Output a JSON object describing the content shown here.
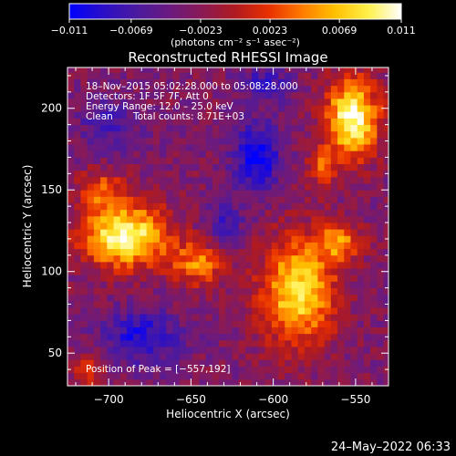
{
  "chart_data": {
    "type": "heatmap",
    "title": "Reconstructed RHESSI Image",
    "xlabel": "Heliocentric X (arcsec)",
    "ylabel": "Heliocentric Y (arcsec)",
    "xlim": [
      -725,
      -530
    ],
    "ylim": [
      30,
      225
    ],
    "x_ticks": [
      -700,
      -650,
      -600,
      -550
    ],
    "x_tick_labels": [
      "−700",
      "−650",
      "−600",
      "−550"
    ],
    "y_ticks": [
      50,
      100,
      150,
      200
    ],
    "y_tick_labels": [
      "50",
      "100",
      "150",
      "200"
    ],
    "colorbar": {
      "min": -0.011,
      "max": 0.011,
      "ticks": [
        -0.011,
        -0.0069,
        -0.0023,
        0.0023,
        0.0069,
        0.011
      ],
      "tick_labels": [
        "−0.011",
        "−0.0069",
        "−0.0023",
        "0.0023",
        "0.0069",
        "0.011"
      ],
      "unit_label": "(photons cm⁻² s⁻¹ asec⁻²)",
      "colormap": [
        "#0000ff",
        "#2a0ec8",
        "#4a1aa0",
        "#6a1a80",
        "#8a1a55",
        "#b01a20",
        "#e83000",
        "#ff7a00",
        "#ffc000",
        "#fff04a",
        "#ffffff"
      ]
    },
    "annotations": {
      "time_range": "18–Nov–2015 05:02:28.000 to 05:08:28.000",
      "detectors": "Detectors: 1F 5F 7F, Att 0",
      "energy_range": "Energy Range: 12.0 – 25.0 keV",
      "method": "Clean",
      "total_counts": "Total counts: 8.71E+03",
      "peak": "Position of Peak = [−557,192]"
    },
    "sources": [
      {
        "x": -690,
        "y": 122,
        "rx": 26,
        "ry": 19,
        "amp": 1.0
      },
      {
        "x": -705,
        "y": 150,
        "rx": 14,
        "ry": 12,
        "amp": 0.45
      },
      {
        "x": -645,
        "y": 105,
        "rx": 16,
        "ry": 14,
        "amp": 0.55
      },
      {
        "x": -585,
        "y": 88,
        "rx": 22,
        "ry": 32,
        "amp": 0.85
      },
      {
        "x": -560,
        "y": 118,
        "rx": 14,
        "ry": 12,
        "amp": 0.55
      },
      {
        "x": -552,
        "y": 194,
        "rx": 16,
        "ry": 24,
        "amp": 1.0
      },
      {
        "x": -570,
        "y": 164,
        "rx": 10,
        "ry": 12,
        "amp": 0.4
      },
      {
        "x": -712,
        "y": 40,
        "rx": 10,
        "ry": 10,
        "amp": 0.35
      },
      {
        "x": -610,
        "y": 170,
        "rx": 14,
        "ry": 20,
        "amp": -0.6
      },
      {
        "x": -630,
        "y": 130,
        "rx": 12,
        "ry": 14,
        "amp": -0.3
      },
      {
        "x": -680,
        "y": 60,
        "rx": 24,
        "ry": 16,
        "amp": -0.45
      },
      {
        "x": -700,
        "y": 190,
        "rx": 18,
        "ry": 16,
        "amp": -0.3
      },
      {
        "x": -605,
        "y": 215,
        "rx": 16,
        "ry": 10,
        "amp": -0.35
      }
    ],
    "grid": false,
    "legend": "colorbar top"
  },
  "footer": {
    "date": "24–May–2022 06:33"
  }
}
